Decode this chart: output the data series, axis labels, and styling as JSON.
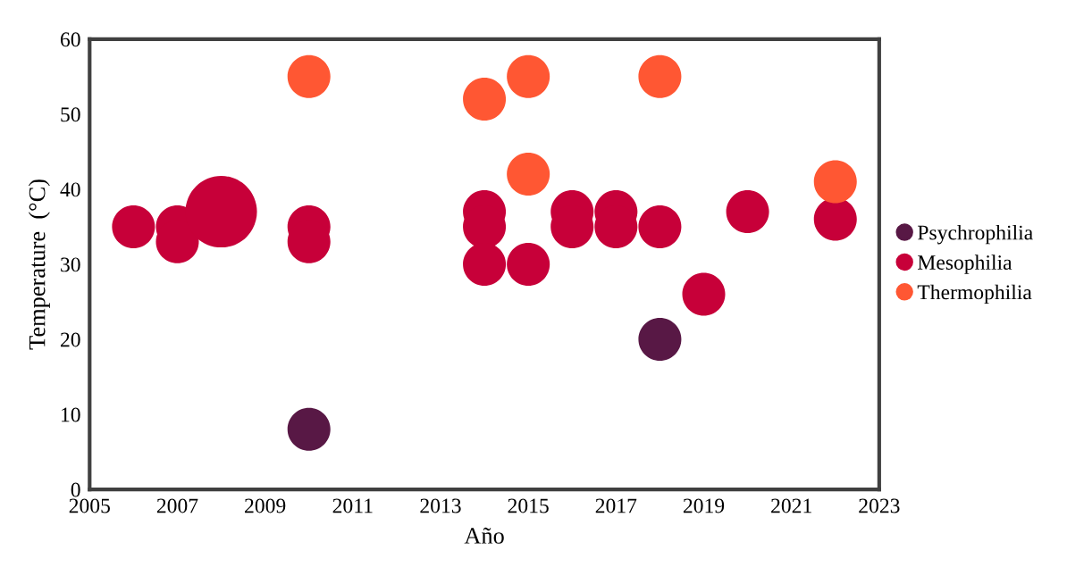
{
  "chart_data": {
    "type": "bubble",
    "xlabel": "Año",
    "ylabel": "Temperature  (°C)",
    "xlim": [
      2005,
      2023
    ],
    "xticks": [
      2005,
      2007,
      2009,
      2011,
      2013,
      2015,
      2017,
      2019,
      2021,
      2023
    ],
    "ylim": [
      0,
      60
    ],
    "yticks": [
      0,
      10,
      20,
      30,
      40,
      50,
      60
    ],
    "grid": false,
    "legend": "right",
    "series": [
      {
        "name": "Psychrophilia",
        "color": "#581845",
        "x": [
          2010,
          2018
        ],
        "values": [
          8,
          20
        ],
        "sizes": [
          0.36,
          0.36
        ]
      },
      {
        "name": "Mesophilia",
        "color": "#c70039",
        "x": [
          2006,
          2007,
          2007,
          2008,
          2010,
          2010,
          2014,
          2014,
          2014,
          2015,
          2016,
          2016,
          2017,
          2017,
          2018,
          2019,
          2020,
          2022
        ],
        "values": [
          35,
          35,
          33,
          37,
          35,
          33,
          37,
          35,
          30,
          30,
          37,
          35,
          37,
          35,
          35,
          26,
          37,
          36
        ],
        "sizes": [
          0.36,
          0.36,
          0.36,
          1,
          0.36,
          0.36,
          0.36,
          0.36,
          0.36,
          0.36,
          0.36,
          0.36,
          0.36,
          0.36,
          0.36,
          0.36,
          0.36,
          0.36
        ]
      },
      {
        "name": "Thermophilia",
        "color": "#ff5733",
        "x": [
          2010,
          2014,
          2015,
          2015,
          2018,
          2022
        ],
        "values": [
          55,
          52,
          55,
          42,
          55,
          41
        ],
        "sizes": [
          0.36,
          0.36,
          0.36,
          0.36,
          0.36,
          0.36
        ]
      }
    ]
  }
}
